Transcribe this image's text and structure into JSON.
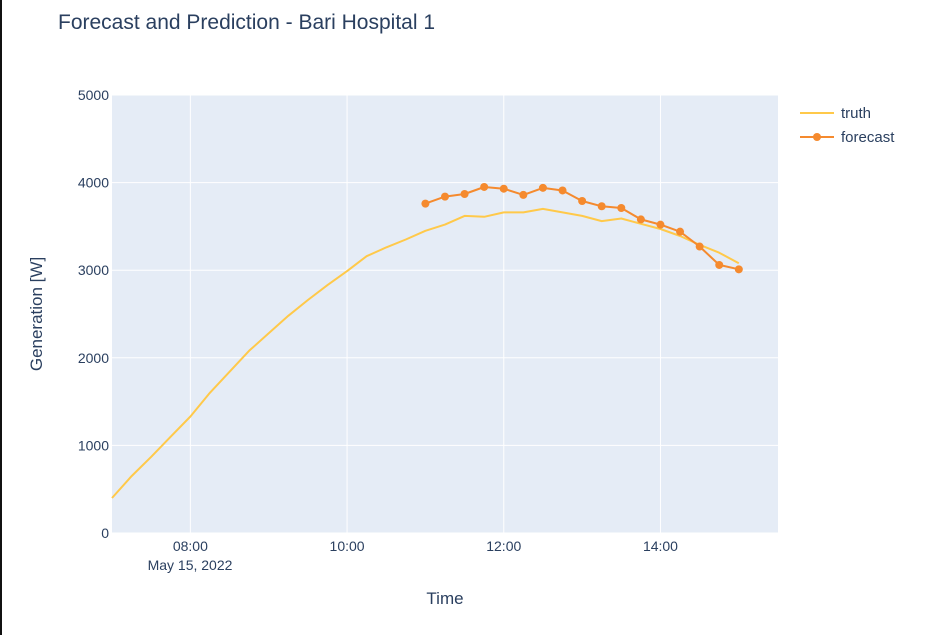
{
  "chart_data": {
    "type": "line",
    "title": "Forecast and Prediction - Bari Hospital 1",
    "xlabel": "Time",
    "ylabel": "Generation [W]",
    "x_date_label": "May 15, 2022",
    "xlim": [
      "07:00",
      "15:30"
    ],
    "ylim": [
      0,
      5000
    ],
    "x_ticks": [
      "08:00",
      "10:00",
      "12:00",
      "14:00"
    ],
    "y_ticks": [
      0,
      1000,
      2000,
      3000,
      4000,
      5000
    ],
    "grid": true,
    "legend_position": "top-right",
    "series": [
      {
        "name": "truth",
        "color": "#FFC94A",
        "mode": "lines",
        "x": [
          "07:00",
          "07:15",
          "07:30",
          "07:45",
          "08:00",
          "08:15",
          "08:30",
          "08:45",
          "09:00",
          "09:15",
          "09:30",
          "09:45",
          "10:00",
          "10:15",
          "10:30",
          "10:45",
          "11:00",
          "11:15",
          "11:30",
          "11:45",
          "12:00",
          "12:15",
          "12:30",
          "12:45",
          "13:00",
          "13:15",
          "13:30",
          "13:45",
          "14:00",
          "14:15",
          "14:30",
          "14:45",
          "15:00"
        ],
        "y": [
          400,
          650,
          870,
          1100,
          1330,
          1600,
          1840,
          2080,
          2280,
          2480,
          2660,
          2830,
          2990,
          3160,
          3260,
          3350,
          3450,
          3520,
          3620,
          3610,
          3660,
          3660,
          3700,
          3660,
          3620,
          3560,
          3590,
          3530,
          3470,
          3390,
          3290,
          3200,
          3080
        ]
      },
      {
        "name": "forecast",
        "color": "#F58A2E",
        "mode": "lines+markers",
        "x": [
          "11:00",
          "11:15",
          "11:30",
          "11:45",
          "12:00",
          "12:15",
          "12:30",
          "12:45",
          "13:00",
          "13:15",
          "13:30",
          "13:45",
          "14:00",
          "14:15",
          "14:30",
          "14:45",
          "15:00"
        ],
        "y": [
          3760,
          3840,
          3870,
          3950,
          3930,
          3860,
          3940,
          3910,
          3790,
          3730,
          3710,
          3580,
          3520,
          3440,
          3270,
          3060,
          3010
        ]
      }
    ]
  }
}
